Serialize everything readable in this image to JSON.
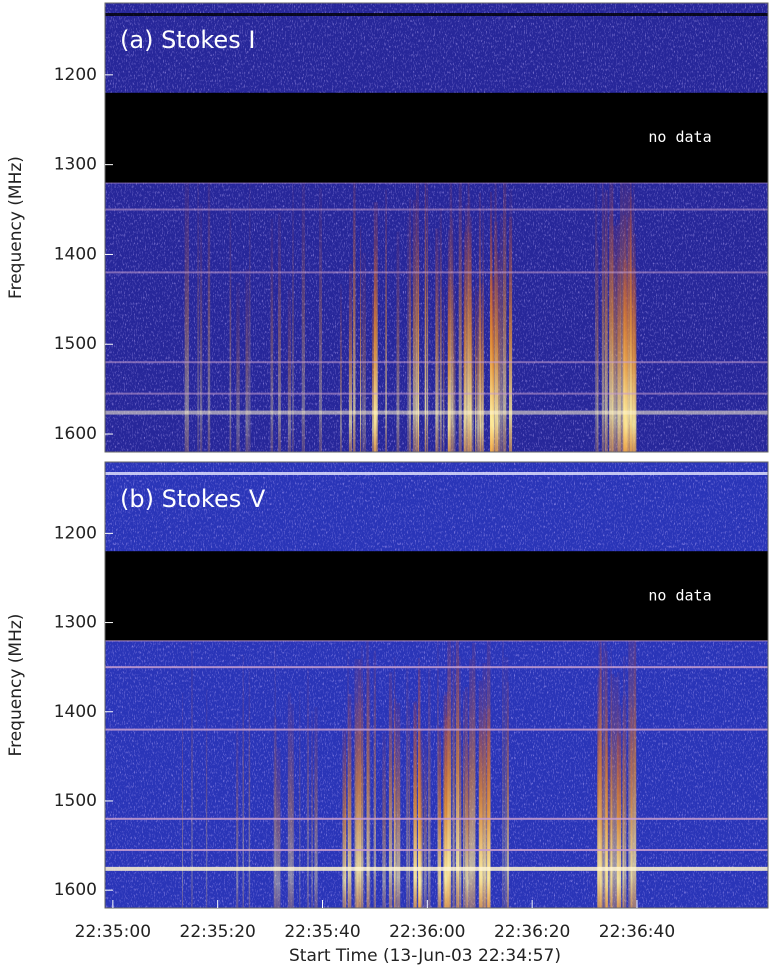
{
  "chart_data": [
    {
      "type": "spectrogram",
      "title": "(a) Stokes I",
      "y_label": "Frequency (MHz)",
      "ylim": [
        1120,
        1620
      ],
      "invert_y": true,
      "yticks": [
        1200,
        1300,
        1400,
        1500,
        1600
      ],
      "xlim": [
        1.5,
        128
      ],
      "no_data_band": [
        1220,
        1320
      ],
      "annotation": "no data"
    },
    {
      "type": "spectrogram",
      "title": "(b) Stokes V",
      "y_label": "Frequency (MHz)",
      "ylim": [
        1120,
        1620
      ],
      "invert_y": true,
      "yticks": [
        1200,
        1300,
        1400,
        1500,
        1600
      ],
      "xlim": [
        1.5,
        128
      ],
      "xticks": [
        {
          "value": 3,
          "label": "22:35:00"
        },
        {
          "value": 23,
          "label": "22:35:20"
        },
        {
          "value": 43,
          "label": "22:35:40"
        },
        {
          "value": 63,
          "label": "22:36:00"
        },
        {
          "value": 83,
          "label": "22:36:20"
        },
        {
          "value": 103,
          "label": "22:36:40"
        }
      ],
      "x_label": "Start Time (13-Jun-03 22:34:57)",
      "no_data_band": [
        1220,
        1320
      ],
      "annotation": "no data"
    }
  ]
}
